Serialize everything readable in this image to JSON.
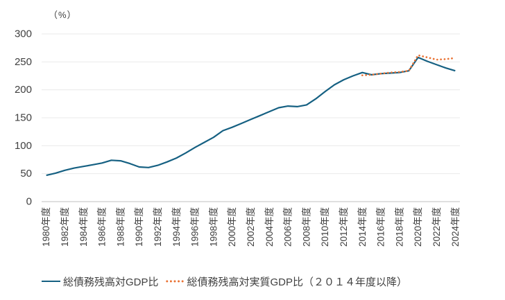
{
  "figure": {
    "unit_label": "（%）"
  },
  "chart_data": {
    "type": "line",
    "title": "",
    "xlabel": "",
    "ylabel": "（%）",
    "ylim": [
      0,
      300
    ],
    "yticks": [
      0,
      50,
      100,
      150,
      200,
      250,
      300
    ],
    "grid": "horizontal",
    "legend_position": "bottom",
    "x": [
      1980,
      1981,
      1982,
      1983,
      1984,
      1985,
      1986,
      1987,
      1988,
      1989,
      1990,
      1991,
      1992,
      1993,
      1994,
      1995,
      1996,
      1997,
      1998,
      1999,
      2000,
      2001,
      2002,
      2003,
      2004,
      2005,
      2006,
      2007,
      2008,
      2009,
      2010,
      2011,
      2012,
      2013,
      2014,
      2015,
      2016,
      2017,
      2018,
      2019,
      2020,
      2021,
      2022,
      2023,
      2024
    ],
    "x_tick_labels": [
      "1980年度",
      "1982年度",
      "1984年度",
      "1986年度",
      "1988年度",
      "1990年度",
      "1992年度",
      "1994年度",
      "1996年度",
      "1998年度",
      "2000年度",
      "2002年度",
      "2004年度",
      "2006年度",
      "2008年度",
      "2010年度",
      "2012年度",
      "2014年度",
      "2016年度",
      "2018年度",
      "2020年度",
      "2022年度",
      "2024年度"
    ],
    "series": [
      {
        "name": "総債務残高対GDP比",
        "color": "#156082",
        "line_style": "solid",
        "start_year": 1980,
        "values": [
          47,
          51,
          56,
          60,
          63,
          66,
          69,
          74,
          73,
          68,
          62,
          61,
          65,
          71,
          78,
          87,
          97,
          106,
          115,
          127,
          133,
          140,
          147,
          154,
          161,
          168,
          171,
          170,
          173,
          184,
          197,
          209,
          218,
          225,
          231,
          227,
          229,
          230,
          231,
          234,
          258,
          251,
          245,
          239,
          234
        ]
      },
      {
        "name": "総債務残高対実質GDP比（２０１４年度以降）",
        "color": "#E97132",
        "line_style": "dotted",
        "start_year": 2014,
        "values": [
          226,
          227,
          229,
          231,
          232,
          234,
          262,
          258,
          254,
          255,
          257
        ]
      }
    ],
    "colors": {
      "axis_line": "#bfbfbf",
      "gridline": "#e9e9e9",
      "tick_text": "#404040"
    }
  }
}
